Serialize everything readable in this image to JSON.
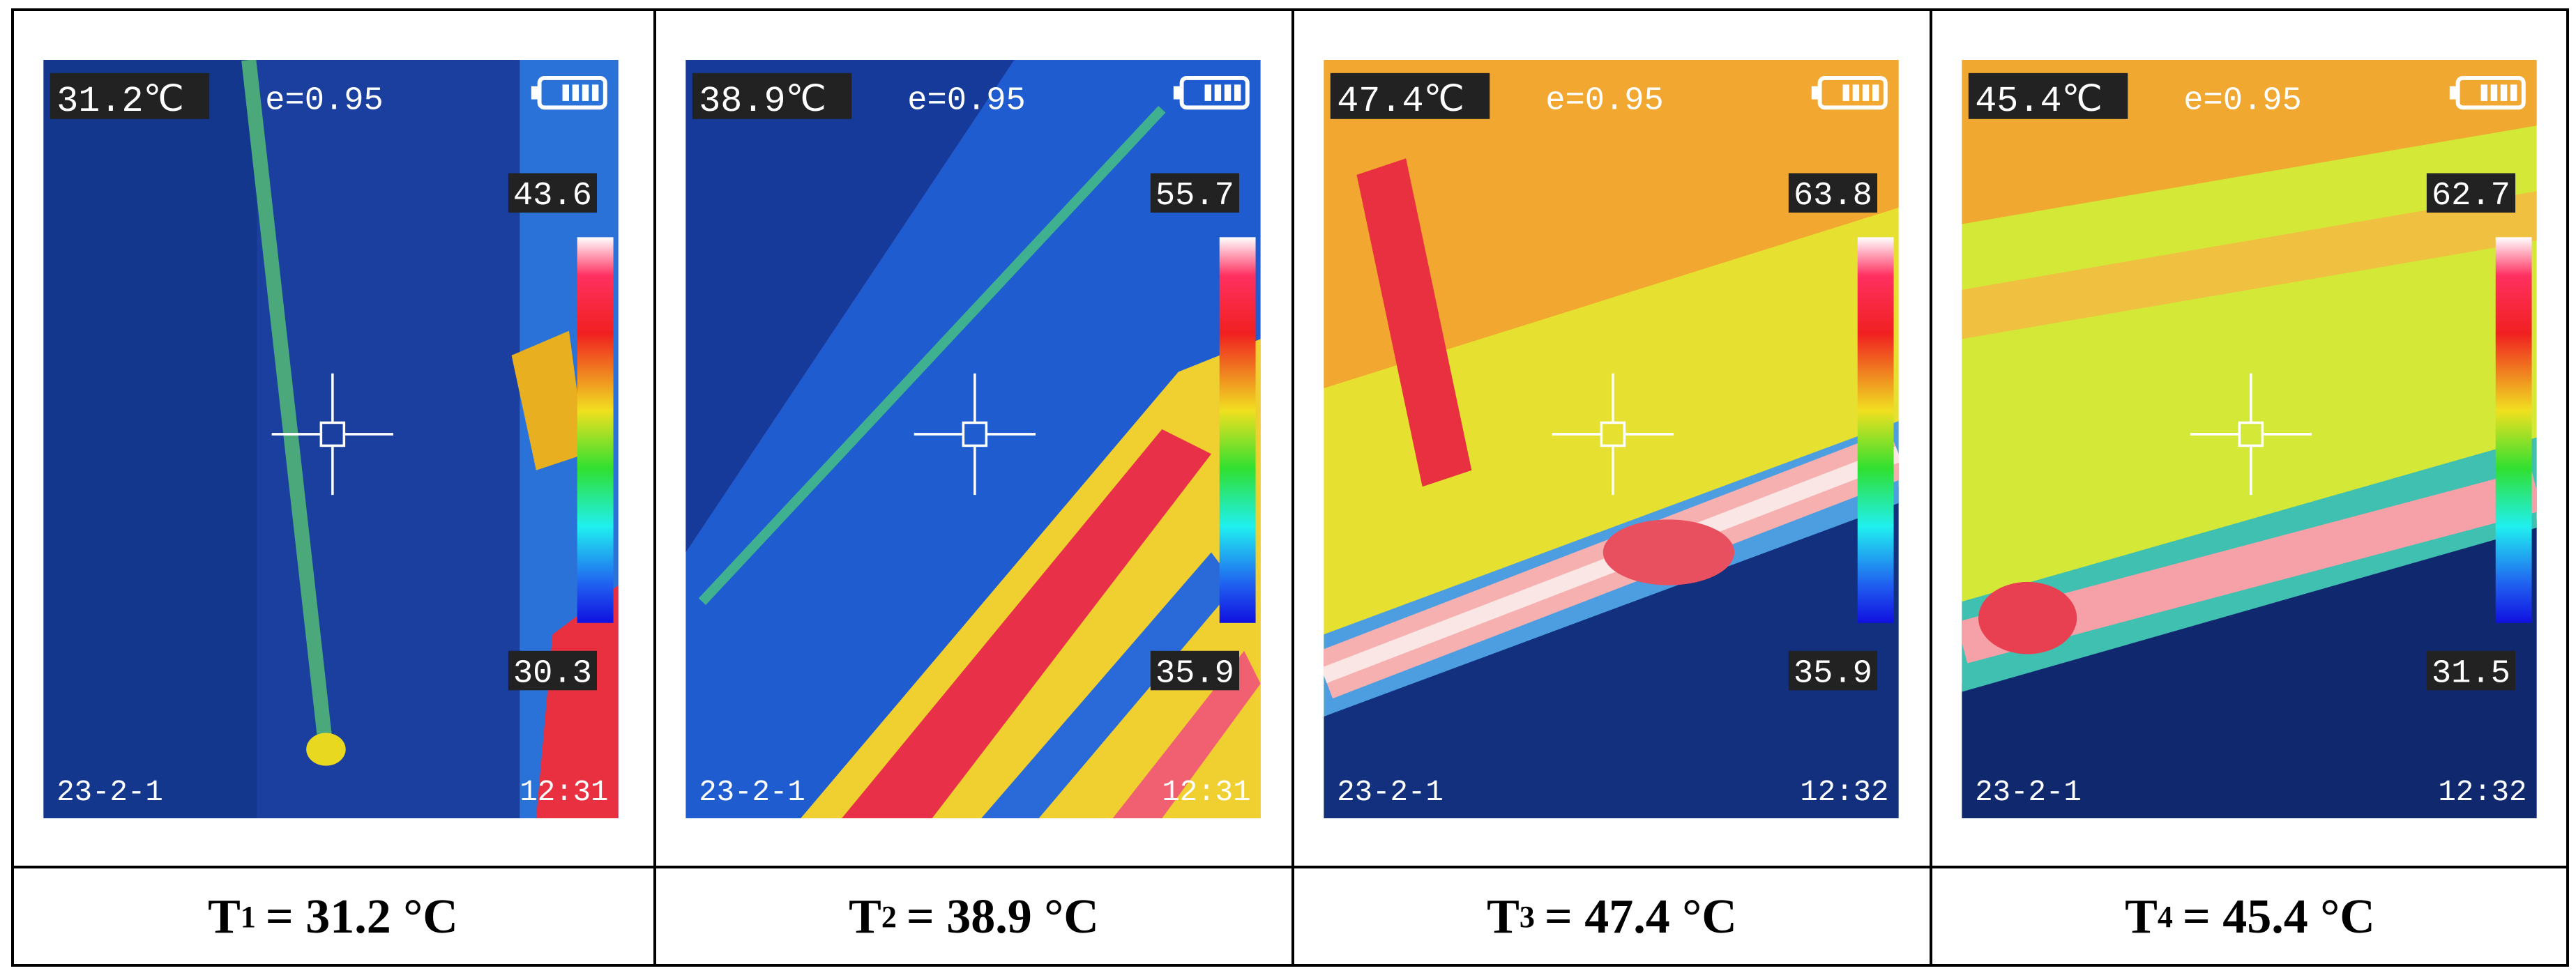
{
  "panels": [
    {
      "temperature": "31.2℃",
      "emissivity": "e=0.95",
      "scale_max": "43.6",
      "scale_min": "30.3",
      "date": "23-2-1",
      "time": "12:31",
      "caption": {
        "symbol": "T",
        "subscript": "1",
        "value": "= 31.2 °C"
      }
    },
    {
      "temperature": "38.9℃",
      "emissivity": "e=0.95",
      "scale_max": "55.7",
      "scale_min": "35.9",
      "date": "23-2-1",
      "time": "12:31",
      "caption": {
        "symbol": "T",
        "subscript": "2",
        "value": "= 38.9 °C"
      }
    },
    {
      "temperature": "47.4℃",
      "emissivity": "e=0.95",
      "scale_max": "63.8",
      "scale_min": "35.9",
      "date": "23-2-1",
      "time": "12:32",
      "caption": {
        "symbol": "T",
        "subscript": "3",
        "value": "= 47.4 °C"
      }
    },
    {
      "temperature": "45.4℃",
      "emissivity": "e=0.95",
      "scale_max": "62.7",
      "scale_min": "31.5",
      "date": "23-2-1",
      "time": "12:32",
      "caption": {
        "symbol": "T",
        "subscript": "4",
        "value": "= 45.4 °C"
      }
    }
  ]
}
